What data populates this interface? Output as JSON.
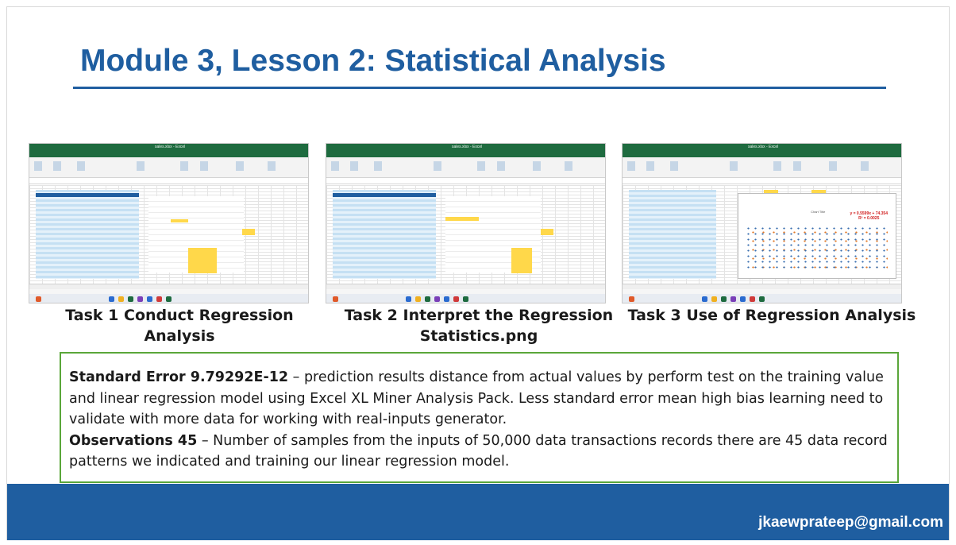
{
  "slide": {
    "title": "Module 3, Lesson 2: Statistical Analysis",
    "footer_email": "jkaewprateep@gmail.com"
  },
  "tasks": [
    {
      "caption_line1": "Task 1 Conduct Regression",
      "caption_line2": "Analysis"
    },
    {
      "caption_line1": "Task 2 Interpret the Regression",
      "caption_line2": "Statistics.png"
    },
    {
      "caption_line1": "Task 3 Use of Regression Analysis",
      "caption_line2": ""
    }
  ],
  "screenshots": {
    "window_title": "sales.xlsx - Excel",
    "menu": [
      "File",
      "Home",
      "Insert",
      "Draw",
      "Page Layout",
      "Formulas",
      "Data",
      "Review",
      "View",
      "Help"
    ],
    "chart_equation": "y = 0.5599x + 74.354",
    "chart_r2": "R² = 0.0025",
    "chart_title": "Chart Title"
  },
  "notes": {
    "std_error_label": "Standard Error 9.79292E-12",
    "std_error_text": " – prediction results distance from actual values by perform test on the training value and linear regression model using Excel XL Miner Analysis Pack. Less standard error mean high bias learning need to validate with more data for working with real-inputs generator.",
    "observations_label": "Observations 45",
    "observations_text": " – Number of samples from the inputs of 50,000 data transactions records there are 45 data record patterns we indicated and training our linear regression model."
  },
  "colors": {
    "title_blue": "#1f5ea0",
    "excel_green": "#1e6b3f",
    "box_border_green": "#5aa63a",
    "highlight_yellow": "#ffd84a",
    "equation_red": "#d01c1c"
  }
}
